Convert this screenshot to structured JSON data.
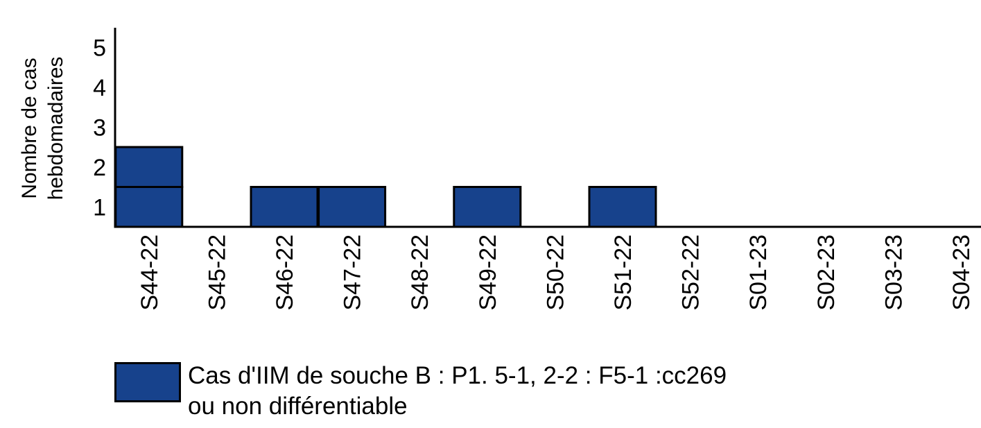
{
  "chart_data": {
    "type": "bar",
    "subtype": "stacked-case-blocks",
    "categories": [
      "S44-22",
      "S45-22",
      "S46-22",
      "S47-22",
      "S48-22",
      "S49-22",
      "S50-22",
      "S51-22",
      "S52-22",
      "S01-23",
      "S02-23",
      "S03-23",
      "S04-23"
    ],
    "series": [
      {
        "name": "Cas d'IIM de souche  B : P1. 5-1, 2-2 : F5-1 :cc269 ou non différentiable",
        "values": [
          2,
          0,
          1,
          1,
          0,
          1,
          0,
          1,
          0,
          0,
          0,
          0,
          0
        ]
      }
    ],
    "ylabel": [
      "Nombre de cas",
      "hebdomadaires"
    ],
    "xlabel": "",
    "title": "",
    "ylim": [
      0,
      5
    ],
    "yticks": [
      1,
      2,
      3,
      4,
      5
    ],
    "grid": false,
    "legend_position": "bottom-left",
    "colors": {
      "bar": "#17428c",
      "outline": "#000000"
    }
  },
  "legend": {
    "line1": "Cas d'IIM de souche  B : P1. 5-1, 2-2 : F5-1 :cc269",
    "line2": "ou non différentiable"
  }
}
